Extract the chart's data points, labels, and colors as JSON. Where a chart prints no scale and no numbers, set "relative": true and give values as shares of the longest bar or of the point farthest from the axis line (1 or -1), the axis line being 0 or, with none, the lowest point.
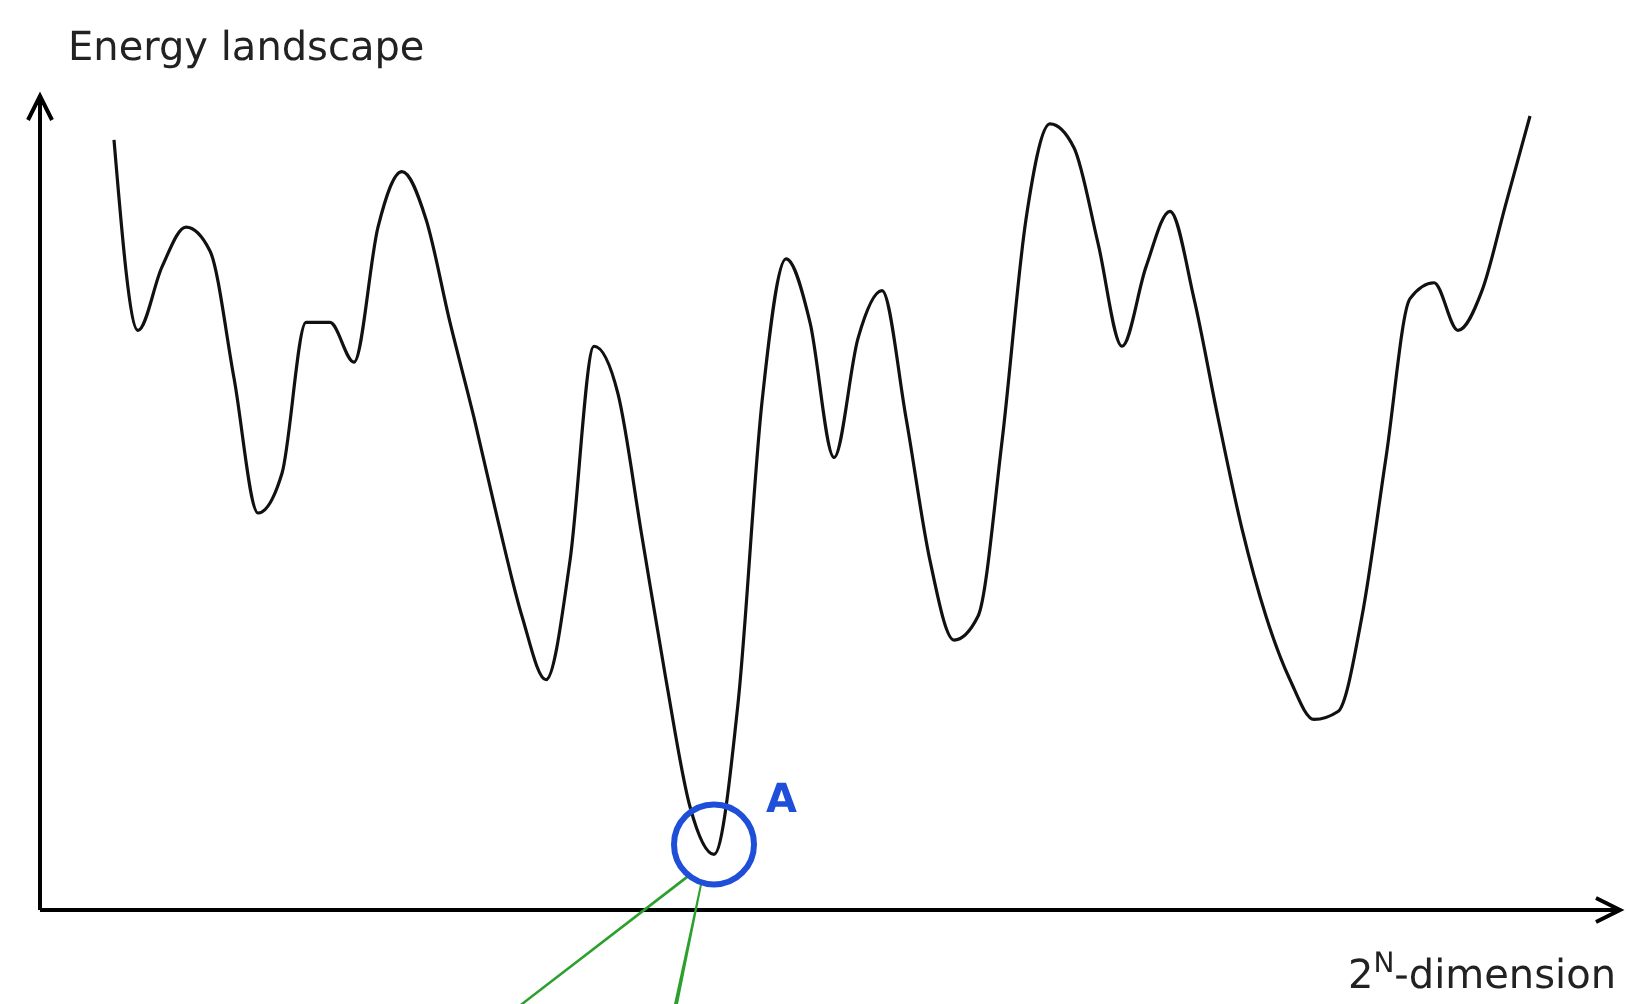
{
  "chart_data": {
    "type": "line",
    "relative": true,
    "xlabel": "2$^{N}$-dimension",
    "ylabel": "Energy landscape",
    "color": "#111111",
    "categories": [
      null,
      null,
      null,
      null,
      null,
      null,
      null,
      null,
      null,
      null,
      null,
      null,
      null,
      null,
      null,
      null,
      null,
      null,
      null,
      null,
      null,
      null,
      null,
      null,
      null,
      null,
      null,
      null,
      null,
      null,
      null,
      null,
      null,
      null,
      null,
      null,
      null,
      null,
      null,
      null,
      null,
      null,
      null,
      null,
      null,
      null,
      null,
      null,
      null,
      null,
      null,
      null,
      null,
      null,
      null,
      null,
      null,
      null,
      null,
      null
    ],
    "values": [
      0.97,
      0.73,
      0.81,
      0.86,
      0.83,
      0.67,
      0.5,
      0.55,
      0.74,
      0.74,
      0.69,
      0.86,
      0.93,
      0.87,
      0.74,
      0.62,
      0.49,
      0.37,
      0.29,
      0.44,
      0.71,
      0.65,
      0.47,
      0.29,
      0.13,
      0.07,
      0.26,
      0.64,
      0.82,
      0.74,
      0.57,
      0.72,
      0.78,
      0.62,
      0.44,
      0.34,
      0.37,
      0.59,
      0.87,
      0.99,
      0.96,
      0.84,
      0.71,
      0.81,
      0.88,
      0.77,
      0.62,
      0.48,
      0.37,
      0.29,
      0.24,
      0.25,
      0.37,
      0.57,
      0.77,
      0.79,
      0.73,
      0.78,
      0.89,
      1
    ],
    "annotations": [
      "A"
    ]
  }
}
